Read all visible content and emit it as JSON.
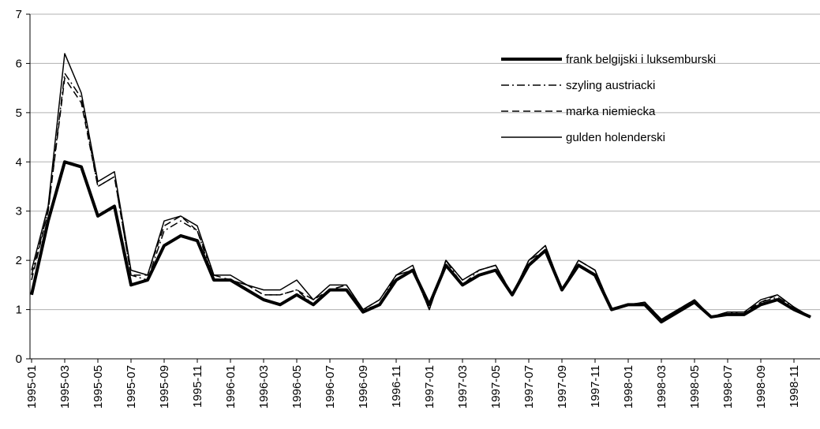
{
  "chart_data": {
    "type": "line",
    "categories": [
      "1995-01",
      null,
      "1995-03",
      null,
      "1995-05",
      null,
      "1995-07",
      null,
      "1995-09",
      null,
      "1995-11",
      null,
      "1996-01",
      null,
      "1996-03",
      null,
      "1996-05",
      null,
      "1996-07",
      null,
      "1996-09",
      null,
      "1996-11",
      null,
      "1997-01",
      null,
      "1997-03",
      null,
      "1997-05",
      null,
      "1997-07",
      null,
      "1997-09",
      null,
      "1997-11",
      null,
      "1998-01",
      null,
      "1998-03",
      null,
      "1998-05",
      null,
      "1998-07",
      null,
      "1998-09",
      null,
      "1998-11",
      null
    ],
    "series": [
      {
        "name": "frank belgijski i luksemburski",
        "color": "#000000",
        "values": [
          1.3,
          2.8,
          4.0,
          3.9,
          2.9,
          3.1,
          1.5,
          1.6,
          2.3,
          2.5,
          2.4,
          1.6,
          1.6,
          1.4,
          1.2,
          1.1,
          1.3,
          1.1,
          1.4,
          1.4,
          0.95,
          1.1,
          1.6,
          1.8,
          1.1,
          1.9,
          1.5,
          1.7,
          1.8,
          1.3,
          1.9,
          2.2,
          1.4,
          1.9,
          1.7,
          1.0,
          1.1,
          1.1,
          0.75,
          0.95,
          1.15,
          0.85,
          0.9,
          0.9,
          1.1,
          1.2,
          1.0,
          0.85
        ]
      },
      {
        "name": "szyling austriacki",
        "color": "#000000",
        "values": [
          1.7,
          3.0,
          5.8,
          5.3,
          3.5,
          3.7,
          1.7,
          1.6,
          2.6,
          2.8,
          2.6,
          1.6,
          1.6,
          1.5,
          1.3,
          1.3,
          1.4,
          1.1,
          1.4,
          1.5,
          1.0,
          1.1,
          1.7,
          1.8,
          1.0,
          2.0,
          1.5,
          1.8,
          1.9,
          1.3,
          2.0,
          2.2,
          1.4,
          2.0,
          1.8,
          1.0,
          1.1,
          1.1,
          0.8,
          1.0,
          1.2,
          0.85,
          0.95,
          0.9,
          1.15,
          1.25,
          1.05,
          0.85
        ]
      },
      {
        "name": "marka niemiecka",
        "color": "#000000",
        "values": [
          1.6,
          3.0,
          5.7,
          5.2,
          3.5,
          3.7,
          1.7,
          1.7,
          2.7,
          2.9,
          2.6,
          1.7,
          1.6,
          1.5,
          1.3,
          1.3,
          1.4,
          1.2,
          1.4,
          1.5,
          1.0,
          1.2,
          1.7,
          1.8,
          1.0,
          2.0,
          1.6,
          1.8,
          1.9,
          1.3,
          2.0,
          2.3,
          1.4,
          2.0,
          1.8,
          1.0,
          1.1,
          1.15,
          0.8,
          1.0,
          1.2,
          0.85,
          0.95,
          0.95,
          1.15,
          1.3,
          1.05,
          0.85
        ]
      },
      {
        "name": "gulden holenderski",
        "color": "#000000",
        "values": [
          1.8,
          3.1,
          6.2,
          5.4,
          3.6,
          3.8,
          1.8,
          1.7,
          2.8,
          2.9,
          2.7,
          1.7,
          1.7,
          1.5,
          1.4,
          1.4,
          1.6,
          1.2,
          1.5,
          1.5,
          1.0,
          1.2,
          1.7,
          1.9,
          1.0,
          2.0,
          1.6,
          1.8,
          1.9,
          1.3,
          2.0,
          2.3,
          1.4,
          2.0,
          1.8,
          1.0,
          1.1,
          1.15,
          0.8,
          1.0,
          1.2,
          0.85,
          0.95,
          0.95,
          1.2,
          1.3,
          1.05,
          0.85
        ]
      }
    ],
    "ylim": [
      0,
      7
    ],
    "yticks": [
      0,
      1,
      2,
      3,
      4,
      5,
      6,
      7
    ],
    "grid": true,
    "legend": "upper right"
  }
}
